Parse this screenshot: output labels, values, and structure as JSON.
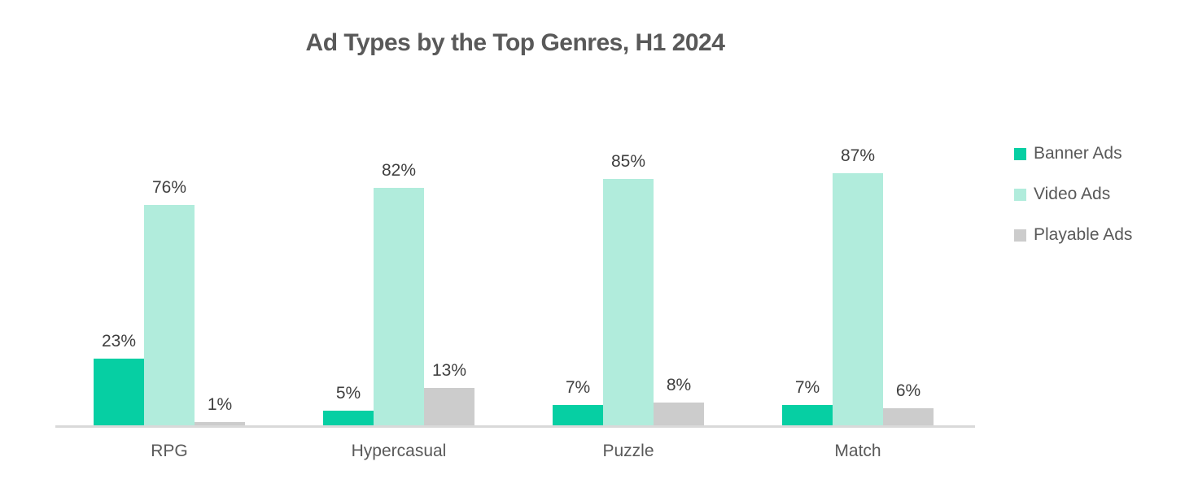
{
  "title": "Ad Types by the Top Genres, H1 2024",
  "chart_data": {
    "type": "bar",
    "title": "Ad Types by the Top Genres, H1 2024",
    "categories": [
      "RPG",
      "Hypercasual",
      "Puzzle",
      "Match"
    ],
    "series": [
      {
        "name": "Banner Ads",
        "color": "#06cfa3",
        "values": [
          23,
          5,
          7,
          7
        ]
      },
      {
        "name": "Video Ads",
        "color": "#b1ecdc",
        "values": [
          76,
          82,
          85,
          87
        ]
      },
      {
        "name": "Playable Ads",
        "color": "#cccccc",
        "values": [
          1,
          13,
          8,
          6
        ]
      }
    ],
    "value_suffix": "%",
    "xlabel": "",
    "ylabel": "",
    "ylim": [
      0,
      100
    ],
    "grid": false,
    "y_axis_visible": false,
    "legend_position": "right",
    "data_labels": true
  },
  "colors": {
    "title_text": "#595959",
    "value_label_text": "#3f3f3f",
    "category_label_text": "#595959",
    "legend_text": "#595959",
    "axis_line": "#d9d9d9",
    "background": "#ffffff"
  }
}
